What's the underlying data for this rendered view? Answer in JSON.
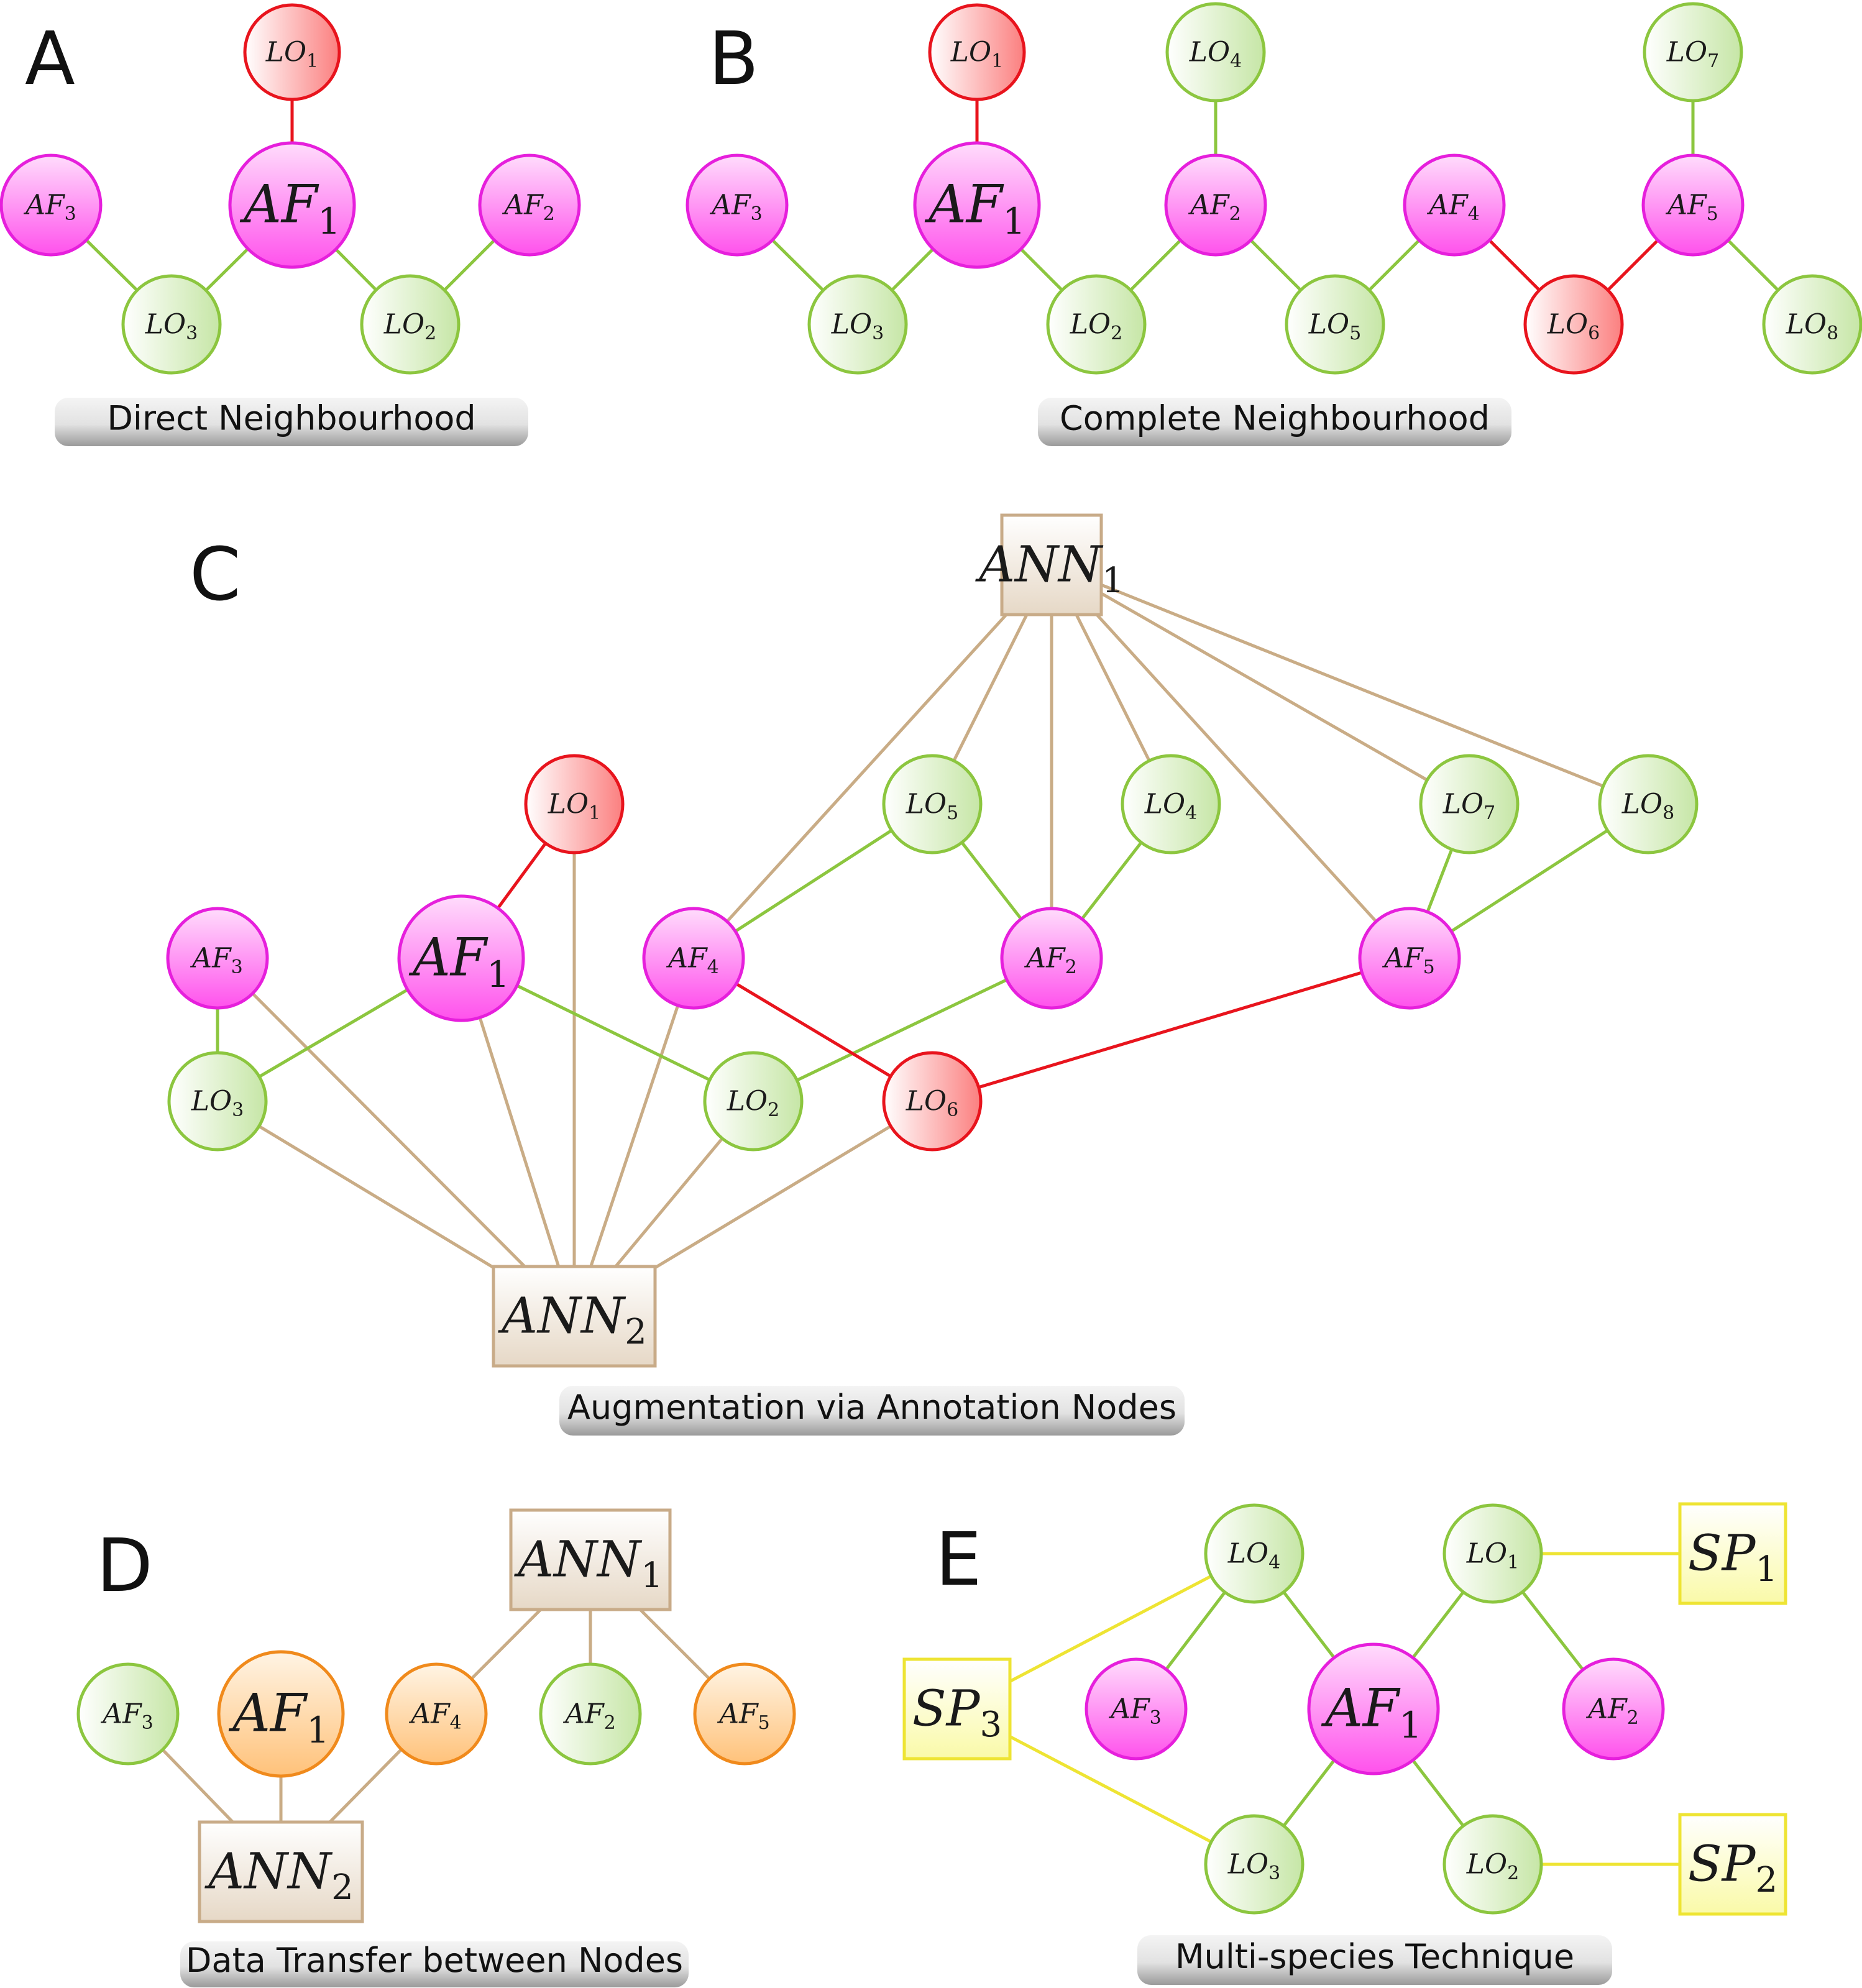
{
  "styles": {
    "af": {
      "stroke": "#e61fdc",
      "light": "#ffdcfc",
      "dark": "#ff52ec"
    },
    "lo": {
      "stroke": "#8cc63f",
      "light": "#ffffff",
      "dark": "#c6e6a6"
    },
    "lored": {
      "stroke": "#e8141d",
      "light": "#ffffff",
      "dark": "#fb7f7f"
    },
    "afo": {
      "stroke": "#f08a1c",
      "light": "#fff4e4",
      "dark": "#ffc27a"
    },
    "afg": {
      "stroke": "#8cc63f",
      "light": "#ffffff",
      "dark": "#c6e6a6"
    },
    "ann": {
      "stroke": "#c8ab88",
      "light": "#ffffff",
      "dark": "#e6d8c6"
    },
    "sp": {
      "stroke": "#eee433",
      "light": "#ffffff",
      "dark": "#fafaa8"
    },
    "edges": {
      "green": "#8cc63f",
      "red": "#e8141d",
      "tan": "#c9ac86",
      "yellow": "#eee433"
    }
  },
  "panels": [
    {
      "id": "A",
      "letter": "A",
      "caption": "Direct Neighbourhood",
      "nodes": [
        {
          "id": "LO1",
          "base": "LO",
          "sub": "1",
          "style": "lored"
        },
        {
          "id": "AF1",
          "base": "AF",
          "sub": "1",
          "style": "af"
        },
        {
          "id": "AF3",
          "base": "AF",
          "sub": "3",
          "style": "af"
        },
        {
          "id": "AF2",
          "base": "AF",
          "sub": "2",
          "style": "af"
        },
        {
          "id": "LO3",
          "base": "LO",
          "sub": "3",
          "style": "lo"
        },
        {
          "id": "LO2",
          "base": "LO",
          "sub": "2",
          "style": "lo"
        }
      ],
      "edges": [
        {
          "from": "AF1",
          "to": "LO1",
          "color": "red"
        },
        {
          "from": "AF1",
          "to": "LO3",
          "color": "green"
        },
        {
          "from": "AF1",
          "to": "LO2",
          "color": "green"
        },
        {
          "from": "AF3",
          "to": "LO3",
          "color": "green"
        },
        {
          "from": "AF2",
          "to": "LO2",
          "color": "green"
        }
      ]
    },
    {
      "id": "B",
      "letter": "B",
      "caption": "Complete Neighbourhood",
      "nodes": [
        {
          "id": "LO1",
          "base": "LO",
          "sub": "1",
          "style": "lored"
        },
        {
          "id": "LO4",
          "base": "LO",
          "sub": "4",
          "style": "lo"
        },
        {
          "id": "LO7",
          "base": "LO",
          "sub": "7",
          "style": "lo"
        },
        {
          "id": "AF3",
          "base": "AF",
          "sub": "3",
          "style": "af"
        },
        {
          "id": "AF1",
          "base": "AF",
          "sub": "1",
          "style": "af"
        },
        {
          "id": "AF2",
          "base": "AF",
          "sub": "2",
          "style": "af"
        },
        {
          "id": "AF4",
          "base": "AF",
          "sub": "4",
          "style": "af"
        },
        {
          "id": "AF5",
          "base": "AF",
          "sub": "5",
          "style": "af"
        },
        {
          "id": "LO3",
          "base": "LO",
          "sub": "3",
          "style": "lo"
        },
        {
          "id": "LO2",
          "base": "LO",
          "sub": "2",
          "style": "lo"
        },
        {
          "id": "LO5",
          "base": "LO",
          "sub": "5",
          "style": "lo"
        },
        {
          "id": "LO6",
          "base": "LO",
          "sub": "6",
          "style": "lored"
        },
        {
          "id": "LO8",
          "base": "LO",
          "sub": "8",
          "style": "lo"
        }
      ],
      "edges": [
        {
          "from": "AF1",
          "to": "LO1",
          "color": "red"
        },
        {
          "from": "AF2",
          "to": "LO4",
          "color": "green"
        },
        {
          "from": "AF5",
          "to": "LO7",
          "color": "green"
        },
        {
          "from": "AF3",
          "to": "LO3",
          "color": "green"
        },
        {
          "from": "AF1",
          "to": "LO3",
          "color": "green"
        },
        {
          "from": "AF1",
          "to": "LO2",
          "color": "green"
        },
        {
          "from": "AF2",
          "to": "LO2",
          "color": "green"
        },
        {
          "from": "AF2",
          "to": "LO5",
          "color": "green"
        },
        {
          "from": "AF4",
          "to": "LO5",
          "color": "green"
        },
        {
          "from": "AF4",
          "to": "LO6",
          "color": "red"
        },
        {
          "from": "AF5",
          "to": "LO6",
          "color": "red"
        },
        {
          "from": "AF5",
          "to": "LO8",
          "color": "green"
        }
      ]
    },
    {
      "id": "C",
      "letter": "C",
      "caption": "Augmentation via Annotation Nodes",
      "nodes": [
        {
          "id": "ANN1",
          "base": "ANN",
          "sub": "1",
          "style": "ann",
          "shape": "rect"
        },
        {
          "id": "LO1",
          "base": "LO",
          "sub": "1",
          "style": "lored"
        },
        {
          "id": "LO5",
          "base": "LO",
          "sub": "5",
          "style": "lo"
        },
        {
          "id": "LO4",
          "base": "LO",
          "sub": "4",
          "style": "lo"
        },
        {
          "id": "LO7",
          "base": "LO",
          "sub": "7",
          "style": "lo"
        },
        {
          "id": "LO8",
          "base": "LO",
          "sub": "8",
          "style": "lo"
        },
        {
          "id": "AF3",
          "base": "AF",
          "sub": "3",
          "style": "af"
        },
        {
          "id": "AF1",
          "base": "AF",
          "sub": "1",
          "style": "af"
        },
        {
          "id": "AF4",
          "base": "AF",
          "sub": "4",
          "style": "af"
        },
        {
          "id": "AF2",
          "base": "AF",
          "sub": "2",
          "style": "af"
        },
        {
          "id": "AF5",
          "base": "AF",
          "sub": "5",
          "style": "af"
        },
        {
          "id": "LO3",
          "base": "LO",
          "sub": "3",
          "style": "lo"
        },
        {
          "id": "LO2",
          "base": "LO",
          "sub": "2",
          "style": "lo"
        },
        {
          "id": "LO6",
          "base": "LO",
          "sub": "6",
          "style": "lored"
        },
        {
          "id": "ANN2",
          "base": "ANN",
          "sub": "2",
          "style": "ann",
          "shape": "rect"
        }
      ],
      "edges": [
        {
          "from": "ANN1",
          "to": "AF4",
          "color": "tan"
        },
        {
          "from": "ANN1",
          "to": "LO5",
          "color": "tan"
        },
        {
          "from": "ANN1",
          "to": "AF2",
          "color": "tan"
        },
        {
          "from": "ANN1",
          "to": "LO4",
          "color": "tan"
        },
        {
          "from": "ANN1",
          "to": "AF5",
          "color": "tan"
        },
        {
          "from": "ANN1",
          "to": "LO7",
          "color": "tan"
        },
        {
          "from": "ANN1",
          "to": "LO8",
          "color": "tan"
        },
        {
          "from": "ANN2",
          "to": "LO3",
          "color": "tan"
        },
        {
          "from": "ANN2",
          "to": "AF3",
          "color": "tan"
        },
        {
          "from": "ANN2",
          "to": "AF1",
          "color": "tan"
        },
        {
          "from": "ANN2",
          "to": "LO1",
          "color": "tan"
        },
        {
          "from": "ANN2",
          "to": "AF4",
          "color": "tan"
        },
        {
          "from": "ANN2",
          "to": "LO2",
          "color": "tan"
        },
        {
          "from": "ANN2",
          "to": "LO6",
          "color": "tan"
        },
        {
          "from": "AF1",
          "to": "LO1",
          "color": "red"
        },
        {
          "from": "AF3",
          "to": "LO3",
          "color": "green"
        },
        {
          "from": "AF1",
          "to": "LO3",
          "color": "green"
        },
        {
          "from": "AF1",
          "to": "LO2",
          "color": "green"
        },
        {
          "from": "AF2",
          "to": "LO2",
          "color": "green"
        },
        {
          "from": "AF4",
          "to": "LO5",
          "color": "green"
        },
        {
          "from": "AF2",
          "to": "LO5",
          "color": "green"
        },
        {
          "from": "AF2",
          "to": "LO4",
          "color": "green"
        },
        {
          "from": "AF5",
          "to": "LO7",
          "color": "green"
        },
        {
          "from": "AF5",
          "to": "LO8",
          "color": "green"
        },
        {
          "from": "AF4",
          "to": "LO6",
          "color": "red"
        },
        {
          "from": "AF5",
          "to": "LO6",
          "color": "red"
        }
      ]
    },
    {
      "id": "D",
      "letter": "D",
      "caption": "Data Transfer between Nodes",
      "nodes": [
        {
          "id": "ANN1",
          "base": "ANN",
          "sub": "1",
          "style": "ann",
          "shape": "rect"
        },
        {
          "id": "AF3",
          "base": "AF",
          "sub": "3",
          "style": "afg"
        },
        {
          "id": "AF1",
          "base": "AF",
          "sub": "1",
          "style": "afo"
        },
        {
          "id": "AF4",
          "base": "AF",
          "sub": "4",
          "style": "afo"
        },
        {
          "id": "AF2",
          "base": "AF",
          "sub": "2",
          "style": "afg"
        },
        {
          "id": "AF5",
          "base": "AF",
          "sub": "5",
          "style": "afo"
        },
        {
          "id": "ANN2",
          "base": "ANN",
          "sub": "2",
          "style": "ann",
          "shape": "rect"
        }
      ],
      "edges": [
        {
          "from": "ANN1",
          "to": "AF4",
          "color": "tan"
        },
        {
          "from": "ANN1",
          "to": "AF2",
          "color": "tan"
        },
        {
          "from": "ANN1",
          "to": "AF5",
          "color": "tan"
        },
        {
          "from": "ANN2",
          "to": "AF3",
          "color": "tan"
        },
        {
          "from": "ANN2",
          "to": "AF1",
          "color": "tan"
        },
        {
          "from": "ANN2",
          "to": "AF4",
          "color": "tan"
        }
      ]
    },
    {
      "id": "E",
      "letter": "E",
      "caption": "Multi-species Technique",
      "nodes": [
        {
          "id": "LO4",
          "base": "LO",
          "sub": "4",
          "style": "lo"
        },
        {
          "id": "LO1",
          "base": "LO",
          "sub": "1",
          "style": "lo"
        },
        {
          "id": "SP1",
          "base": "SP",
          "sub": "1",
          "style": "sp",
          "shape": "rect"
        },
        {
          "id": "SP3",
          "base": "SP",
          "sub": "3",
          "style": "sp",
          "shape": "rect"
        },
        {
          "id": "AF3",
          "base": "AF",
          "sub": "3",
          "style": "af"
        },
        {
          "id": "AF1",
          "base": "AF",
          "sub": "1",
          "style": "af"
        },
        {
          "id": "AF2",
          "base": "AF",
          "sub": "2",
          "style": "af"
        },
        {
          "id": "LO3",
          "base": "LO",
          "sub": "3",
          "style": "lo"
        },
        {
          "id": "LO2",
          "base": "LO",
          "sub": "2",
          "style": "lo"
        },
        {
          "id": "SP2",
          "base": "SP",
          "sub": "2",
          "style": "sp",
          "shape": "rect"
        }
      ],
      "edges": [
        {
          "from": "SP3",
          "to": "LO4",
          "color": "yellow"
        },
        {
          "from": "SP3",
          "to": "LO3",
          "color": "yellow"
        },
        {
          "from": "LO1",
          "to": "SP1",
          "color": "yellow"
        },
        {
          "from": "LO2",
          "to": "SP2",
          "color": "yellow"
        },
        {
          "from": "AF3",
          "to": "LO4",
          "color": "green"
        },
        {
          "from": "AF1",
          "to": "LO4",
          "color": "green"
        },
        {
          "from": "AF1",
          "to": "LO1",
          "color": "green"
        },
        {
          "from": "AF2",
          "to": "LO1",
          "color": "green"
        },
        {
          "from": "AF1",
          "to": "LO3",
          "color": "green"
        },
        {
          "from": "AF1",
          "to": "LO2",
          "color": "green"
        }
      ]
    }
  ]
}
